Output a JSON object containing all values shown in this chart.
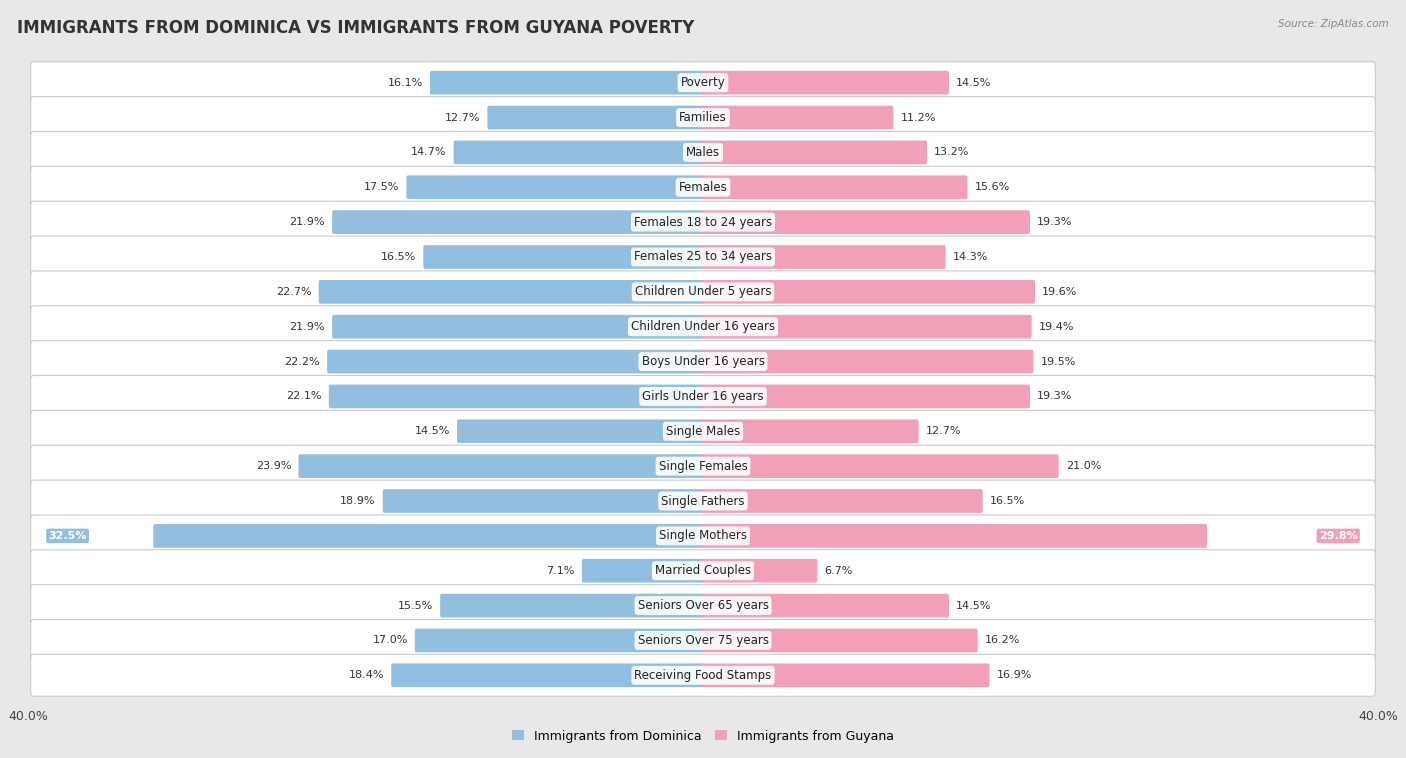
{
  "title": "IMMIGRANTS FROM DOMINICA VS IMMIGRANTS FROM GUYANA POVERTY",
  "source": "Source: ZipAtlas.com",
  "categories": [
    "Poverty",
    "Families",
    "Males",
    "Females",
    "Females 18 to 24 years",
    "Females 25 to 34 years",
    "Children Under 5 years",
    "Children Under 16 years",
    "Boys Under 16 years",
    "Girls Under 16 years",
    "Single Males",
    "Single Females",
    "Single Fathers",
    "Single Mothers",
    "Married Couples",
    "Seniors Over 65 years",
    "Seniors Over 75 years",
    "Receiving Food Stamps"
  ],
  "dominica_values": [
    16.1,
    12.7,
    14.7,
    17.5,
    21.9,
    16.5,
    22.7,
    21.9,
    22.2,
    22.1,
    14.5,
    23.9,
    18.9,
    32.5,
    7.1,
    15.5,
    17.0,
    18.4
  ],
  "guyana_values": [
    14.5,
    11.2,
    13.2,
    15.6,
    19.3,
    14.3,
    19.6,
    19.4,
    19.5,
    19.3,
    12.7,
    21.0,
    16.5,
    29.8,
    6.7,
    14.5,
    16.2,
    16.9
  ],
  "dominica_color": "#92bfdf",
  "guyana_color": "#f2a0b8",
  "dominica_label": "Immigrants from Dominica",
  "guyana_label": "Immigrants from Guyana",
  "xlim": 40.0,
  "background_color": "#e8e8e8",
  "row_color": "#ffffff",
  "title_fontsize": 12,
  "label_fontsize": 8.5,
  "value_fontsize": 8,
  "single_mothers_idx": 13
}
